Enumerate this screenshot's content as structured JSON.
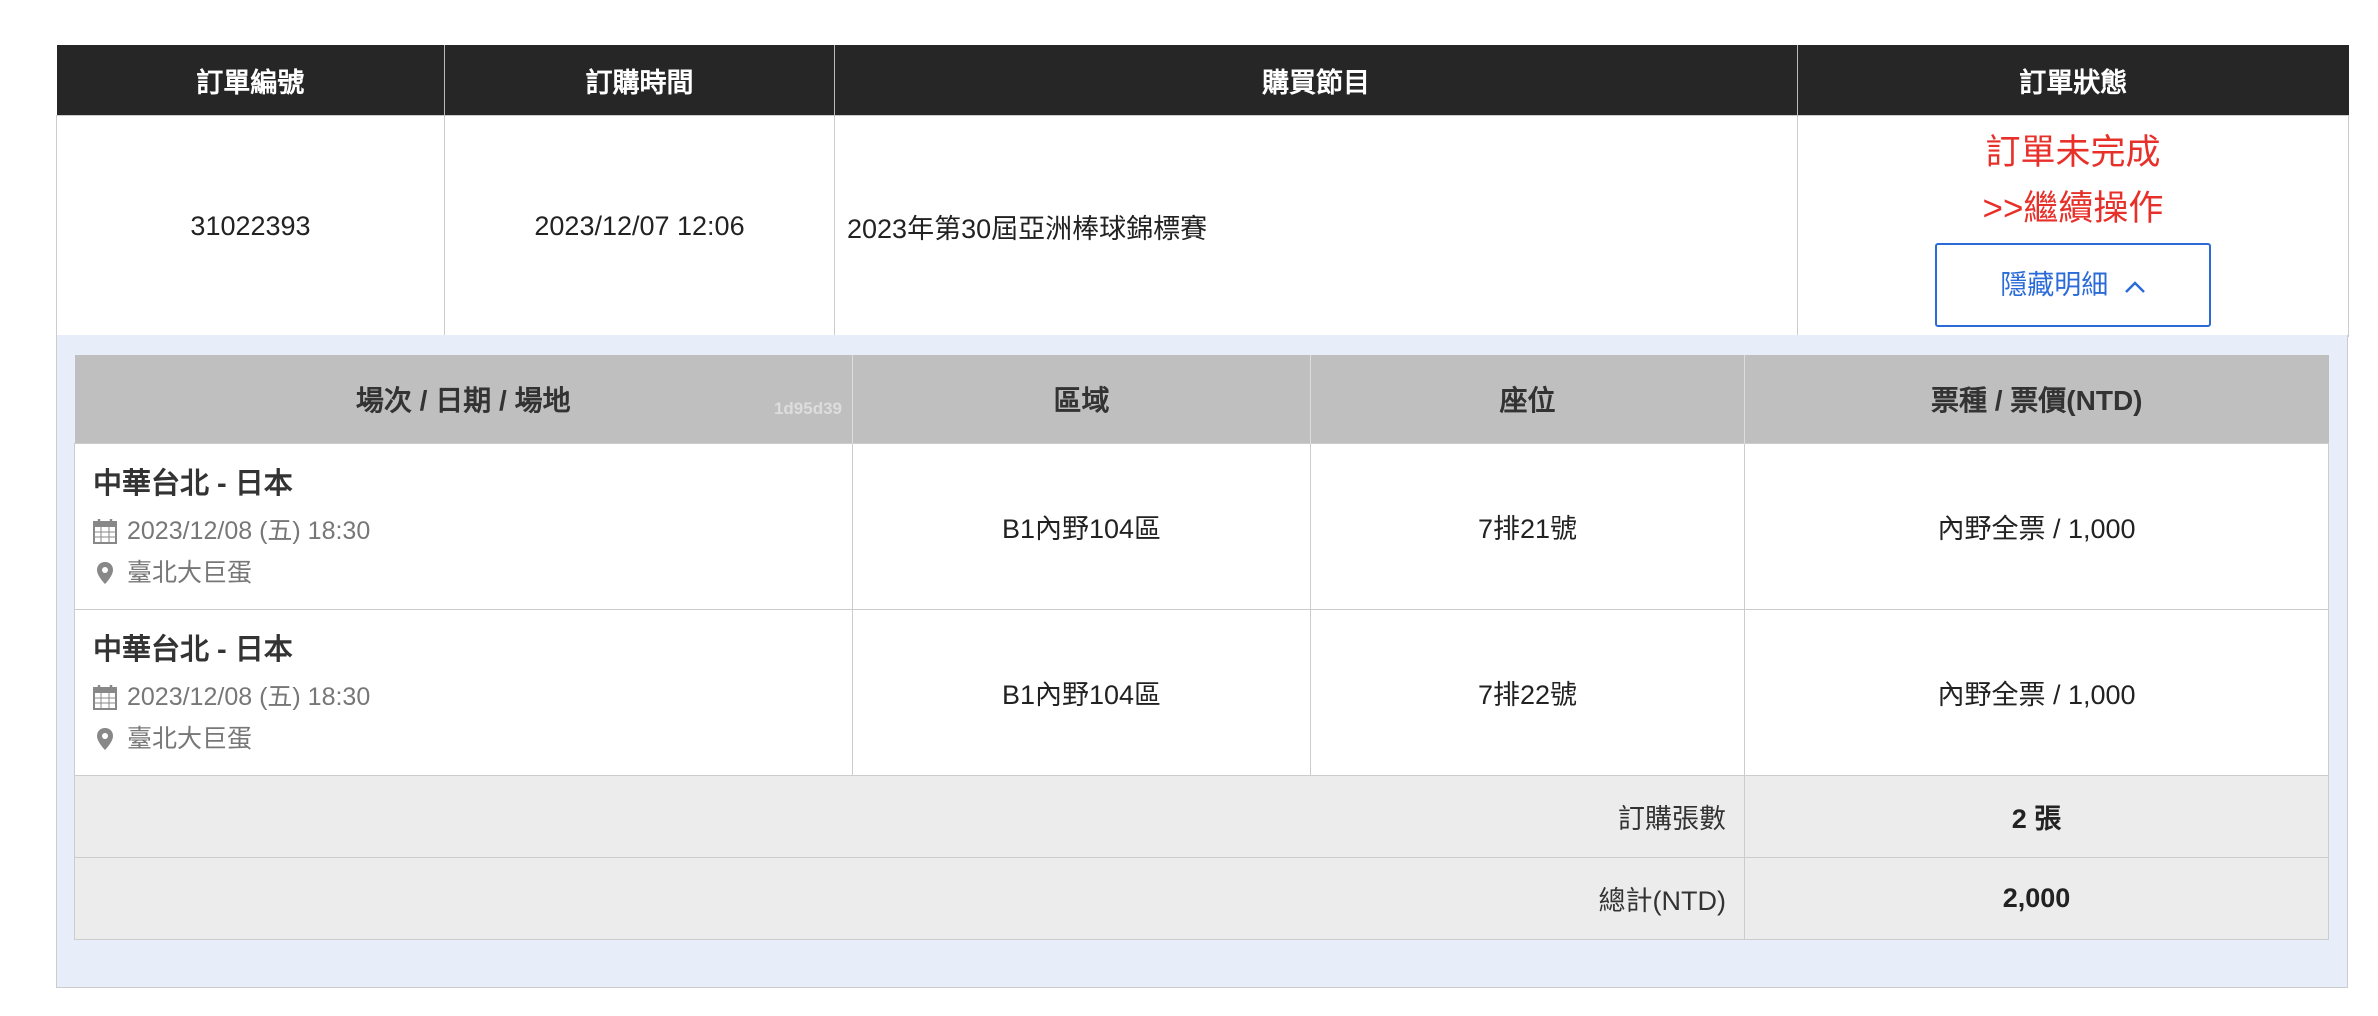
{
  "order_table": {
    "headers": [
      "訂單編號",
      "訂購時間",
      "購買節目",
      "訂單狀態"
    ],
    "row": {
      "order_no": "31022393",
      "order_time": "2023/12/07 12:06",
      "program": "2023年第30屆亞洲棒球錦標賽",
      "status": "訂單未完成",
      "continue_link": ">>繼續操作",
      "toggle_button": "隱藏明細",
      "toggle_icon": "chevron-up-icon"
    }
  },
  "detail_table": {
    "headers": [
      "場次 / 日期 / 場地",
      "區域",
      "座位",
      "票種 / 票價(NTD)"
    ],
    "header_hash": "1d95d39",
    "rows": [
      {
        "game": "中華台北 - 日本",
        "date": "2023/12/08 (五) 18:30",
        "venue": "臺北大巨蛋",
        "area": "B1內野104區",
        "seat": "7排21號",
        "ticket": "內野全票 / 1,000"
      },
      {
        "game": "中華台北 - 日本",
        "date": "2023/12/08 (五) 18:30",
        "venue": "臺北大巨蛋",
        "area": "B1內野104區",
        "seat": "7排22號",
        "ticket": "內野全票 / 1,000"
      }
    ],
    "count_label": "訂購張數",
    "count_value": "2 張",
    "total_label": "總計(NTD)",
    "total_value": "2,000"
  },
  "colors": {
    "header_bg": "#262626",
    "status_red": "#e8302a",
    "accent_blue": "#2b6bd8",
    "total_red": "#c9403a",
    "panel_bg": "#e8eef9"
  }
}
